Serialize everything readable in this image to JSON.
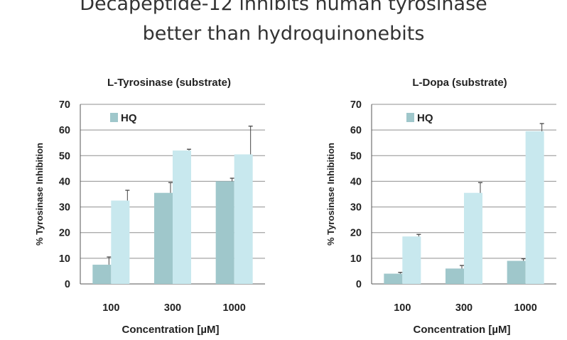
{
  "page": {
    "title_line1": "Decapeptide-12 inhibits human tyrosinase",
    "title_line2": "better than hydroquinonebits"
  },
  "colors": {
    "hq": "#9fc7cb",
    "second": "#c8e8ee",
    "grid": "#8f8f8f",
    "axis": "#555555"
  },
  "chart_data": [
    {
      "type": "bar",
      "title": "L-Tyrosinase (substrate)",
      "xlabel": "Concentration [µM]",
      "ylabel": "% Tyrosinase Inhibition",
      "ylim": [
        0,
        70
      ],
      "yticks": [
        0,
        10,
        20,
        30,
        40,
        50,
        60,
        70
      ],
      "categories": [
        "100",
        "300",
        "1000"
      ],
      "grid": true,
      "legend": [
        "HQ"
      ],
      "legend_position": "top-left",
      "series": [
        {
          "name": "HQ",
          "values": [
            7.5,
            35.5,
            40
          ],
          "errors": [
            3,
            4,
            1.2
          ]
        },
        {
          "values": [
            32.5,
            52,
            50.5
          ],
          "errors": [
            4,
            0.5,
            11
          ]
        }
      ]
    },
    {
      "type": "bar",
      "title": "L-Dopa (substrate)",
      "xlabel": "Concentration [µM]",
      "ylabel": "% Tyrosinase Inhibition",
      "ylim": [
        0,
        70
      ],
      "yticks": [
        0,
        10,
        20,
        30,
        40,
        50,
        60,
        70
      ],
      "categories": [
        "100",
        "300",
        "1000"
      ],
      "grid": true,
      "legend": [
        "HQ"
      ],
      "legend_position": "top-left",
      "series": [
        {
          "name": "HQ",
          "values": [
            4,
            6,
            9
          ],
          "errors": [
            0.5,
            1.2,
            0.8
          ]
        },
        {
          "values": [
            18.5,
            35.5,
            59.5
          ],
          "errors": [
            0.8,
            4,
            3
          ]
        }
      ]
    }
  ]
}
